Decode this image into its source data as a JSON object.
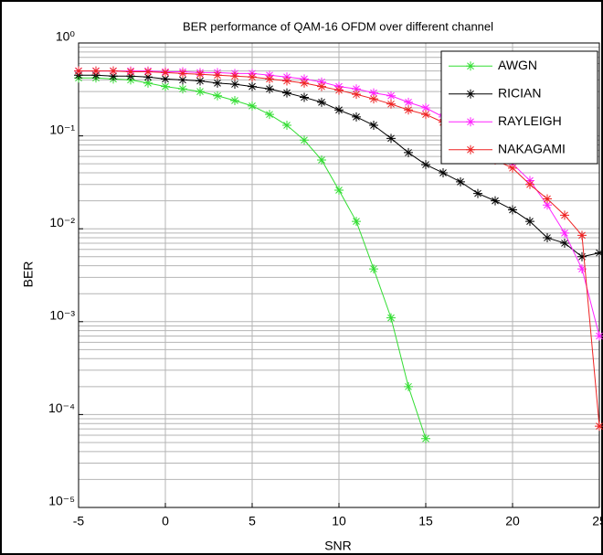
{
  "chart_data": {
    "type": "line",
    "title": "BER performance of QAM-16 OFDM over different channel",
    "x_label": "SNR",
    "y_label": "BER",
    "x": [
      -5,
      -4,
      -3,
      -2,
      -1,
      0,
      1,
      2,
      3,
      4,
      5,
      6,
      7,
      8,
      9,
      10,
      11,
      12,
      13,
      14,
      15,
      16,
      17,
      18,
      19,
      20,
      21,
      22,
      23,
      24,
      25
    ],
    "xlim": [
      -5,
      25
    ],
    "xticks": [
      -5,
      0,
      5,
      10,
      15,
      20,
      25
    ],
    "ylim": [
      1e-05,
      1
    ],
    "yticks": [
      {
        "value": 1e-05,
        "label": "10⁻⁵"
      },
      {
        "value": 0.0001,
        "label": "10⁻⁴"
      },
      {
        "value": 0.001,
        "label": "10⁻³"
      },
      {
        "value": 0.01,
        "label": "10⁻²"
      },
      {
        "value": 0.1,
        "label": "10⁻¹"
      },
      {
        "value": 1,
        "label": "10⁰"
      }
    ],
    "y_log": true,
    "grid": true,
    "minor_grid": true,
    "legend": "upper right",
    "series": [
      {
        "name": "AWGN",
        "color": "#33dd33",
        "values": [
          0.42,
          0.42,
          0.41,
          0.4,
          0.37,
          0.34,
          0.32,
          0.3,
          0.27,
          0.24,
          0.21,
          0.17,
          0.13,
          0.09,
          0.055,
          0.026,
          0.012,
          0.0037,
          0.0011,
          0.0002,
          5.5e-05,
          null,
          null,
          null,
          null,
          null,
          null,
          null,
          null,
          null,
          null
        ]
      },
      {
        "name": "RICIAN",
        "color": "#000000",
        "values": [
          0.45,
          0.45,
          0.44,
          0.44,
          0.43,
          0.41,
          0.4,
          0.39,
          0.37,
          0.36,
          0.34,
          0.32,
          0.29,
          0.26,
          0.23,
          0.19,
          0.16,
          0.13,
          0.094,
          0.066,
          0.049,
          0.04,
          0.032,
          0.024,
          0.02,
          0.016,
          0.012,
          0.008,
          0.007,
          0.005,
          0.0055
        ]
      },
      {
        "name": "RAYLEIGH",
        "color": "#ff22ff",
        "values": [
          0.5,
          0.5,
          0.5,
          0.5,
          0.5,
          0.49,
          0.49,
          0.48,
          0.48,
          0.47,
          0.47,
          0.45,
          0.43,
          0.41,
          0.38,
          0.34,
          0.32,
          0.29,
          0.27,
          0.23,
          0.2,
          0.16,
          0.12,
          0.09,
          0.07,
          0.05,
          0.033,
          0.018,
          0.009,
          0.0037,
          0.0007
        ]
      },
      {
        "name": "NAKAGAMI",
        "color": "#ee2222",
        "values": [
          0.5,
          0.5,
          0.5,
          0.49,
          0.49,
          0.48,
          0.47,
          0.46,
          0.45,
          0.44,
          0.43,
          0.41,
          0.39,
          0.37,
          0.34,
          0.31,
          0.28,
          0.25,
          0.22,
          0.19,
          0.17,
          0.14,
          0.11,
          0.085,
          0.055,
          0.045,
          0.03,
          0.021,
          0.014,
          0.0085,
          7.5e-05
        ]
      }
    ]
  }
}
